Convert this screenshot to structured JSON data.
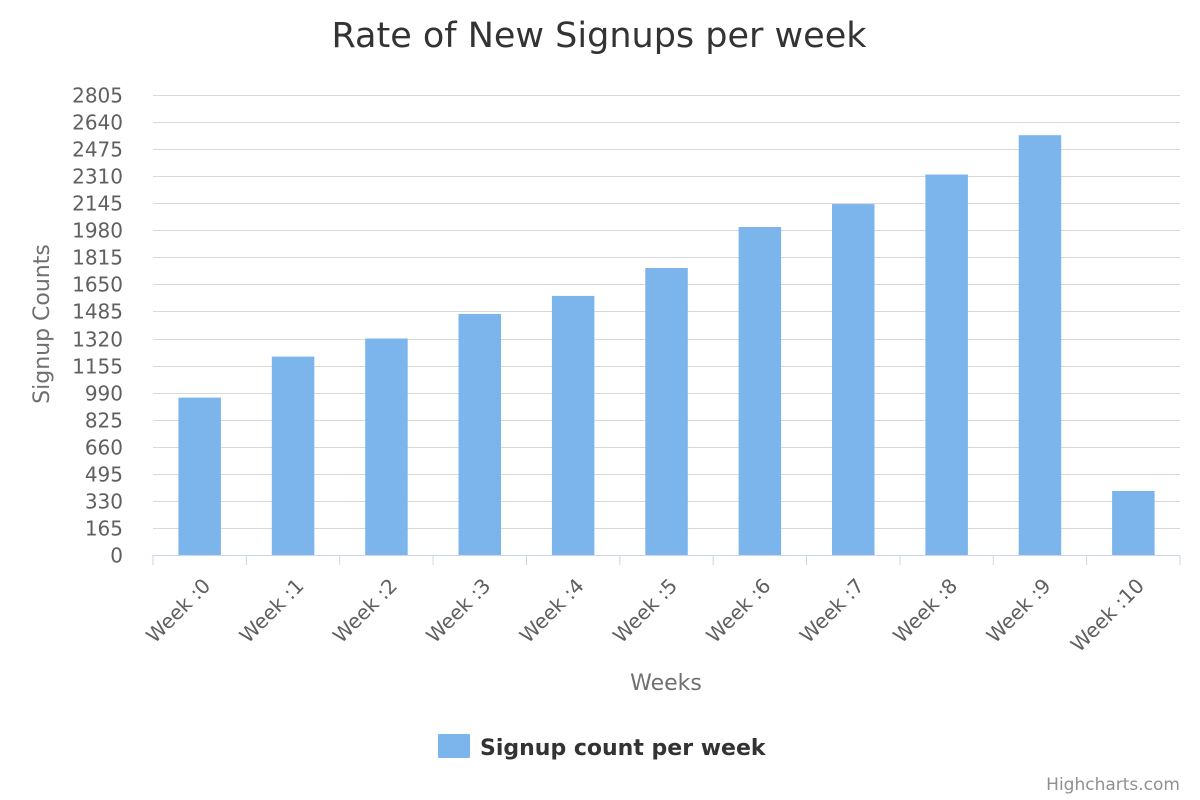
{
  "chart_data": {
    "type": "bar",
    "title": "Rate of New Signups per week",
    "xlabel": "Weeks",
    "ylabel": "Signup Counts",
    "categories": [
      "Week :0",
      "Week :1",
      "Week :2",
      "Week :3",
      "Week :4",
      "Week :5",
      "Week :6",
      "Week :7",
      "Week :8",
      "Week :9",
      "Week :10"
    ],
    "series": [
      {
        "name": "Signup count per week",
        "color": "#7cb5ec",
        "values": [
          960,
          1210,
          1320,
          1470,
          1580,
          1750,
          2000,
          2140,
          2320,
          2560,
          390
        ]
      }
    ],
    "yticks": [
      0,
      165,
      330,
      495,
      660,
      825,
      990,
      1155,
      1320,
      1485,
      1650,
      1815,
      1980,
      2145,
      2310,
      2475,
      2640,
      2805
    ],
    "ylim": [
      0,
      2805
    ],
    "grid": true,
    "legend_position": "bottom-center"
  },
  "credits": "Highcharts.com"
}
